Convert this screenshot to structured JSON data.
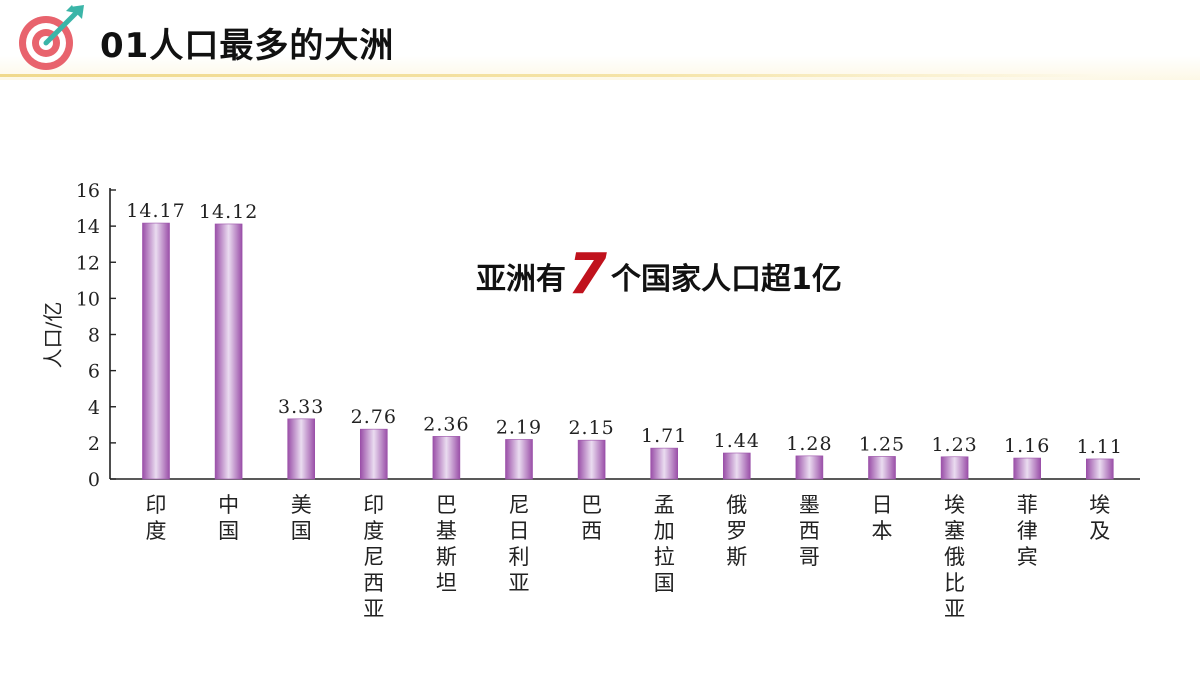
{
  "header": {
    "title": "01人口最多的大洲"
  },
  "logo": {
    "icon": "target-arrow-icon",
    "colors": {
      "ring": "#e8636d",
      "inner": "#ffffff",
      "arrow": "#3bb5a8"
    }
  },
  "callout": {
    "prefix": "亚洲有",
    "number": "7",
    "suffix": "个国家人口超1亿",
    "number_color": "#c0121d"
  },
  "chart_data": {
    "type": "bar",
    "categories": [
      "印度",
      "中国",
      "美国",
      "印度尼西亚",
      "巴基斯坦",
      "尼日利亚",
      "巴西",
      "孟加拉国",
      "俄罗斯",
      "墨西哥",
      "日本",
      "埃塞俄比亚",
      "菲律宾",
      "埃及"
    ],
    "values": [
      14.17,
      14.12,
      3.33,
      2.76,
      2.36,
      2.19,
      2.15,
      1.71,
      1.44,
      1.28,
      1.25,
      1.23,
      1.16,
      1.11
    ],
    "value_labels": [
      "14.17",
      "14.12",
      "3.33",
      "2.76",
      "2.36",
      "2.19",
      "2.15",
      "1.71",
      "1.44",
      "1.28",
      "1.25",
      "1.23",
      "1.16",
      "1.11"
    ],
    "ylabel": "人口/亿",
    "xlabel": "",
    "ylim": [
      0,
      16
    ],
    "yticks": [
      0,
      2,
      4,
      6,
      8,
      10,
      12,
      14,
      16
    ],
    "grid": false,
    "bar_colors": {
      "edge": "#9a4fa8",
      "center": "#eadcf0"
    }
  }
}
